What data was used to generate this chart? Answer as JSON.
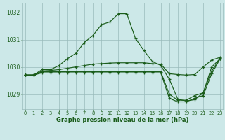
{
  "background_color": "#cce8e8",
  "grid_color": "#99bbbb",
  "line_color": "#1a5c1a",
  "title": "Graphe pression niveau de la mer (hPa)",
  "x": [
    0,
    1,
    2,
    3,
    4,
    5,
    6,
    7,
    8,
    9,
    10,
    11,
    12,
    13,
    14,
    15,
    16,
    17,
    18,
    19,
    20,
    21,
    22,
    23
  ],
  "ylim": [
    1028.45,
    1032.35
  ],
  "yticks": [
    1029,
    1030,
    1031,
    1032
  ],
  "series": [
    [
      1029.7,
      1029.7,
      1029.9,
      1029.9,
      1030.05,
      1030.3,
      1030.5,
      1030.9,
      1031.15,
      1031.55,
      1031.65,
      1031.95,
      1031.95,
      1031.05,
      1030.6,
      1030.2,
      1030.05,
      1029.55,
      1028.82,
      1028.75,
      1028.8,
      1029.05,
      1030.0,
      1030.3
    ],
    [
      1029.7,
      1029.7,
      1029.85,
      1029.87,
      1029.9,
      1029.95,
      1030.0,
      1030.05,
      1030.1,
      1030.12,
      1030.14,
      1030.15,
      1030.15,
      1030.15,
      1030.15,
      1030.12,
      1030.1,
      1029.75,
      1029.72,
      1029.7,
      1029.72,
      1030.0,
      1030.25,
      1030.35
    ],
    [
      1029.7,
      1029.7,
      1029.82,
      1029.82,
      1029.82,
      1029.82,
      1029.82,
      1029.82,
      1029.82,
      1029.82,
      1029.82,
      1029.82,
      1029.82,
      1029.82,
      1029.82,
      1029.82,
      1029.82,
      1029.0,
      1028.78,
      1028.78,
      1028.95,
      1029.05,
      1029.85,
      1030.32
    ],
    [
      1029.7,
      1029.7,
      1029.78,
      1029.78,
      1029.78,
      1029.78,
      1029.78,
      1029.78,
      1029.78,
      1029.78,
      1029.78,
      1029.78,
      1029.78,
      1029.78,
      1029.78,
      1029.78,
      1029.78,
      1028.85,
      1028.72,
      1028.72,
      1028.85,
      1028.95,
      1029.75,
      1030.3
    ]
  ]
}
